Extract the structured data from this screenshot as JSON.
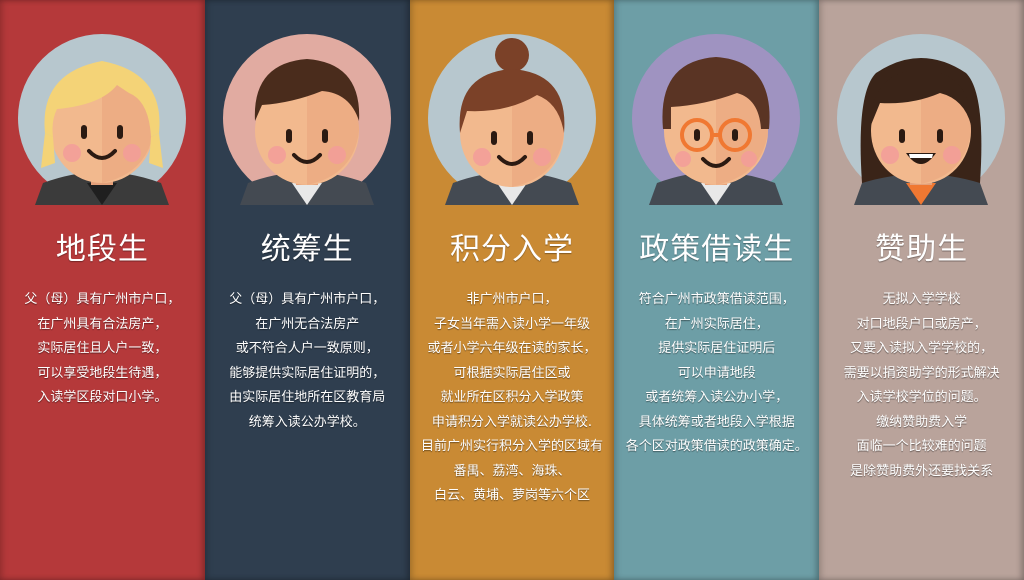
{
  "columns": [
    {
      "title": "地段生",
      "bg": "#b5393a",
      "circle": "#b7c7ce",
      "hair": "#f4d377",
      "lines": [
        "父（母）具有广州市户口，",
        "在广州具有合法房产，",
        "实际居住且人户一致，",
        "可以享受地段生待遇，",
        "入读学区段对口小学。"
      ]
    },
    {
      "title": "统筹生",
      "bg": "#2f3e4f",
      "circle": "#e1aba1",
      "hair": "#4a2c1c",
      "lines": [
        "父（母）具有广州市户口，",
        "在广州无合法房产",
        "或不符合人户一致原则，",
        "能够提供实际居住证明的，",
        "由实际居住地所在区教育局",
        "统筹入读公办学校。"
      ]
    },
    {
      "title": "积分入学",
      "bg": "#c98a34",
      "circle": "#b7c7ce",
      "hair": "#7b4128",
      "lines": [
        "非广州市户口，",
        "子女当年需入读小学一年级",
        "或者小学六年级在读的家长，",
        "可根据实际居住区或",
        "就业所在区积分入学政策",
        "申请积分入学就读公办学校.",
        "目前广州实行积分入学的区域有",
        "番禺、荔湾、海珠、",
        "白云、黄埔、萝岗等六个区"
      ]
    },
    {
      "title": "政策借读生",
      "bg": "#6d9ea6",
      "circle": "#9f93c1",
      "hair": "#5a3424",
      "lines": [
        "符合广州市政策借读范围，",
        "在广州实际居住，",
        "提供实际居住证明后",
        "可以申请地段",
        "或者统筹入读公办小学，",
        "具体统筹或者地段入学根据",
        "各个区对政策借读的政策确定。"
      ]
    },
    {
      "title": "赞助生",
      "bg": "#b9a39b",
      "circle": "#b7c7ce",
      "hair": "#3a2418",
      "lines": [
        "无拟入学学校",
        "对口地段户口或房产，",
        "又要入读拟入学学校的，",
        "需要以捐资助学的形式解决",
        "入读学校学位的问题。",
        "缴纳赞助费入学",
        "面临一个比较难的问题",
        "是除赞助费外还要找关系"
      ]
    }
  ]
}
